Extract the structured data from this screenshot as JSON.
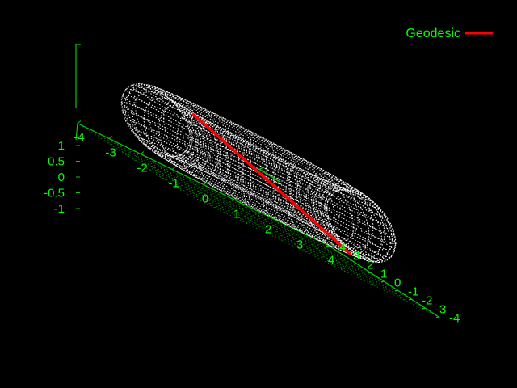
{
  "colors": {
    "background": "#000000",
    "axes": "#00cc00",
    "mesh": "#ffffff",
    "geodesic": "#ff0000",
    "tick_text": "#00ff00"
  },
  "chart_data": {
    "type": "surface3d",
    "surface": "torus",
    "major_radius": 3,
    "minor_radius": 1,
    "xlim": [
      -4,
      4
    ],
    "ylim": [
      -4,
      4
    ],
    "zlim": [
      -1,
      1
    ],
    "x_ticks": [
      "-4",
      "-3",
      "-2",
      "-1",
      "0",
      "1",
      "2",
      "3",
      "4"
    ],
    "y_ticks": [
      "-4",
      "-3",
      "-2",
      "-1",
      "0",
      "1",
      "2",
      "3",
      "4"
    ],
    "z_ticks": [
      "1",
      "0.5",
      "0",
      "-0.5",
      "-1"
    ],
    "grid": true,
    "legend_placement": "top-right",
    "series": [
      {
        "name": "Geodesic",
        "type": "curve3d",
        "color": "#ff0000"
      }
    ]
  }
}
